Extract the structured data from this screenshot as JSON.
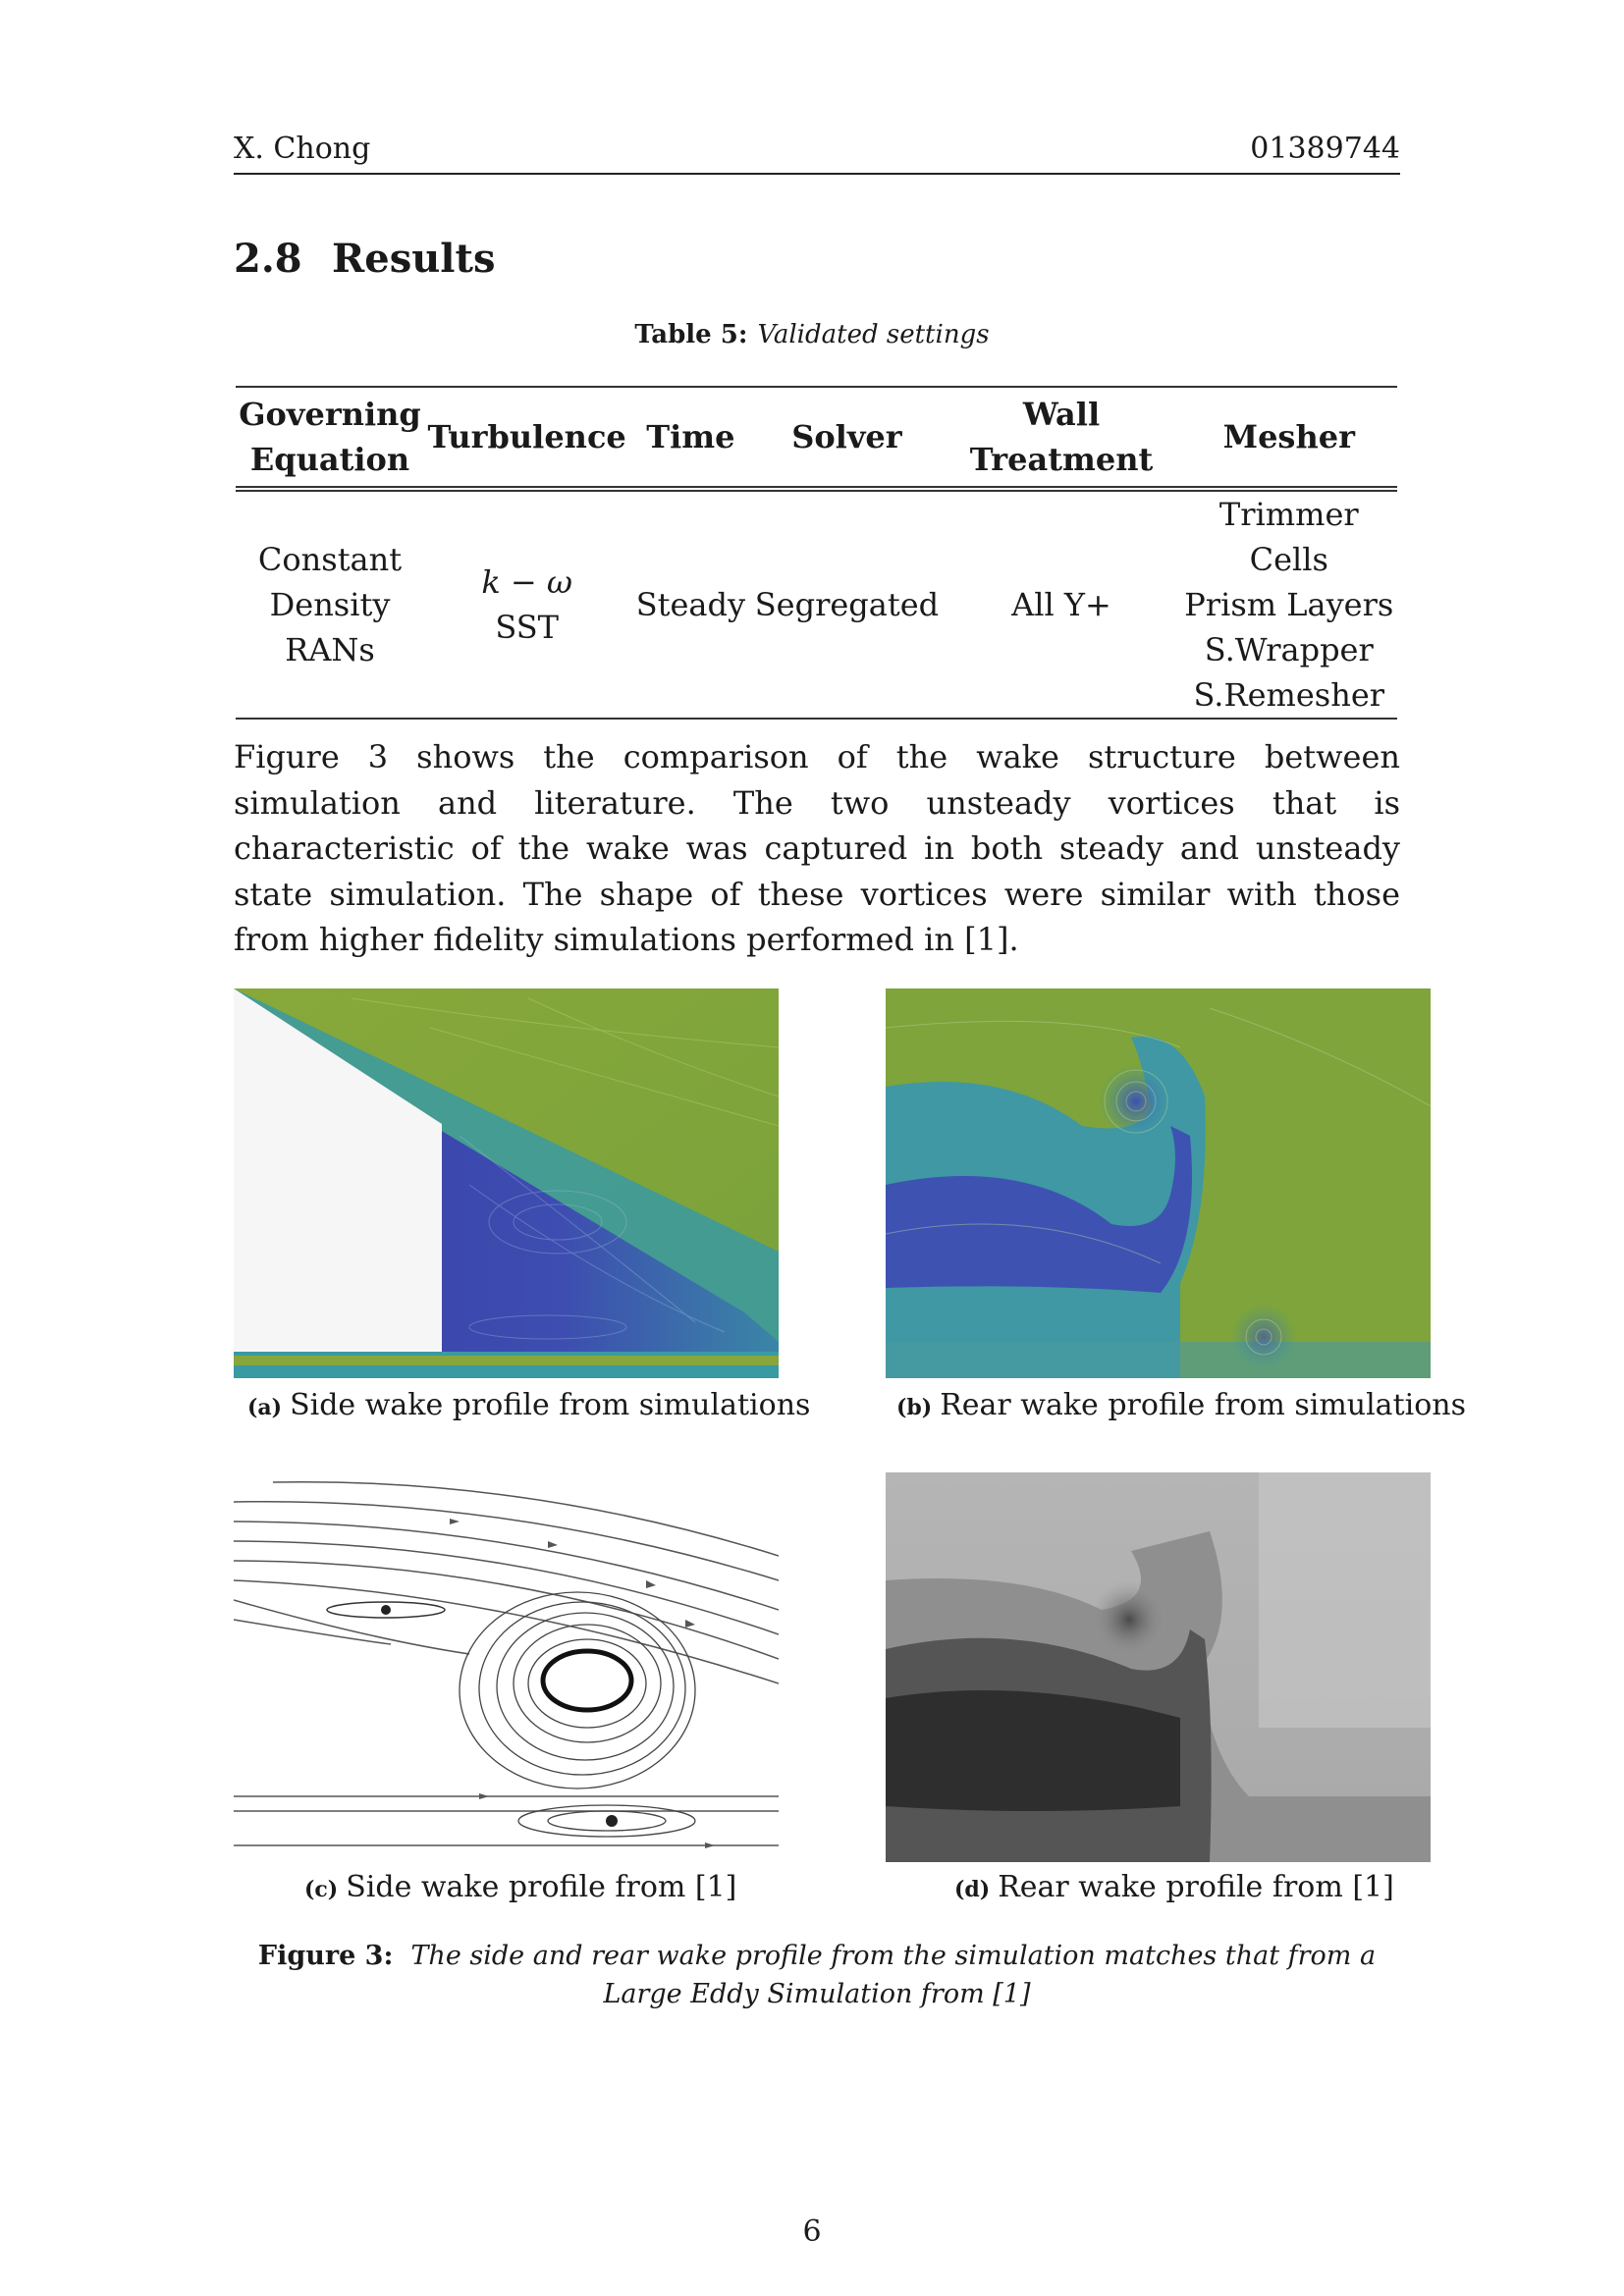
{
  "header": {
    "author": "X. Chong",
    "id": "01389744"
  },
  "section": {
    "number": "2.8",
    "title": "Results"
  },
  "table": {
    "caption_label": "Table 5:",
    "caption_text": "Validated settings",
    "headers": [
      [
        "Governing",
        "Equation"
      ],
      [
        "Turbulence"
      ],
      [
        "Time"
      ],
      [
        "Solver"
      ],
      [
        "Wall",
        "Treatment"
      ],
      [
        "Mesher"
      ]
    ],
    "row": [
      [
        "Constant",
        "Density",
        "RANs"
      ],
      [
        "k − ω",
        "SST"
      ],
      [
        "Steady"
      ],
      [
        "Segregated"
      ],
      [
        "All Y+"
      ],
      [
        "Trimmer Cells",
        "Prism Layers",
        "S.Wrapper",
        "S.Remesher"
      ]
    ]
  },
  "paragraph": "Figure 3 shows the comparison of the wake structure between simulation and literature. The two unsteady vortices that is characteristic of the wake was captured in both steady and unsteady state simulation. The shape of these vortices were similar with those from higher fidelity simulations performed in [1].",
  "subfigures": [
    {
      "label": "(a)",
      "caption": "Side wake profile from simulations"
    },
    {
      "label": "(b)",
      "caption": "Rear wake profile from simulations"
    },
    {
      "label": "(c)",
      "caption": "Side wake profile from [1]"
    },
    {
      "label": "(d)",
      "caption": "Rear wake profile from [1]"
    }
  ],
  "figure_caption": {
    "label": "Figure 3:",
    "text": "The side and rear wake profile from the simulation matches that from a Large Eddy Simulation from [1]"
  },
  "page_number": "6"
}
